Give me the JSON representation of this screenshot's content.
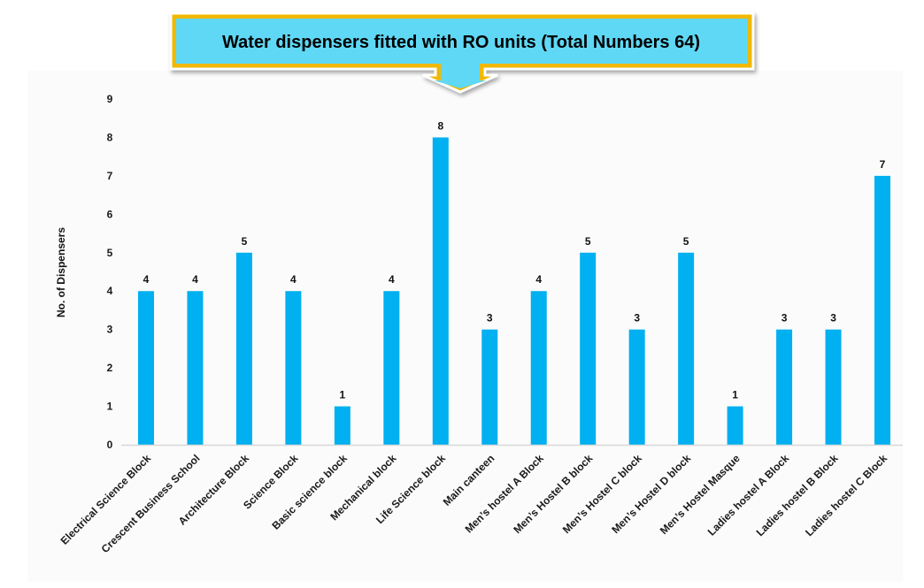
{
  "chart_data": {
    "type": "bar",
    "title": "Water dispensers fitted with RO units (Total Numbers 64)",
    "xlabel": "",
    "ylabel": "No. of Dispensers",
    "ylim": [
      0,
      9
    ],
    "yticks": [
      "0",
      "1",
      "2",
      "3",
      "4",
      "5",
      "6",
      "7",
      "8",
      "9"
    ],
    "grid": false,
    "legend": "none",
    "data_labels": true,
    "categories": [
      "Electrical Science Block",
      "Crescent Business School",
      "Architecture Block",
      "Science Block",
      "Basic science block",
      "Mechanical block",
      "Life Science block",
      "Main canteen",
      "Men’s hostel A Block",
      "Men’s Hostel B block",
      "Men’s Hostel C block",
      "Men’s Hostel D block",
      "Men’s Hostel Masque",
      "Ladies hostel A Block",
      "Ladies hostel B Block",
      "Ladies hostel C Block"
    ],
    "values": [
      4,
      4,
      5,
      4,
      1,
      4,
      8,
      3,
      4,
      5,
      3,
      5,
      1,
      3,
      3,
      7
    ],
    "colors": {
      "bar": "#00b0f0",
      "axis_line": "#d9d9d9",
      "panel_background": "#fbfbfb",
      "title_fill": "#5fd8f5",
      "title_border": "#f0b800",
      "title_border_dark": "#c89000"
    }
  }
}
